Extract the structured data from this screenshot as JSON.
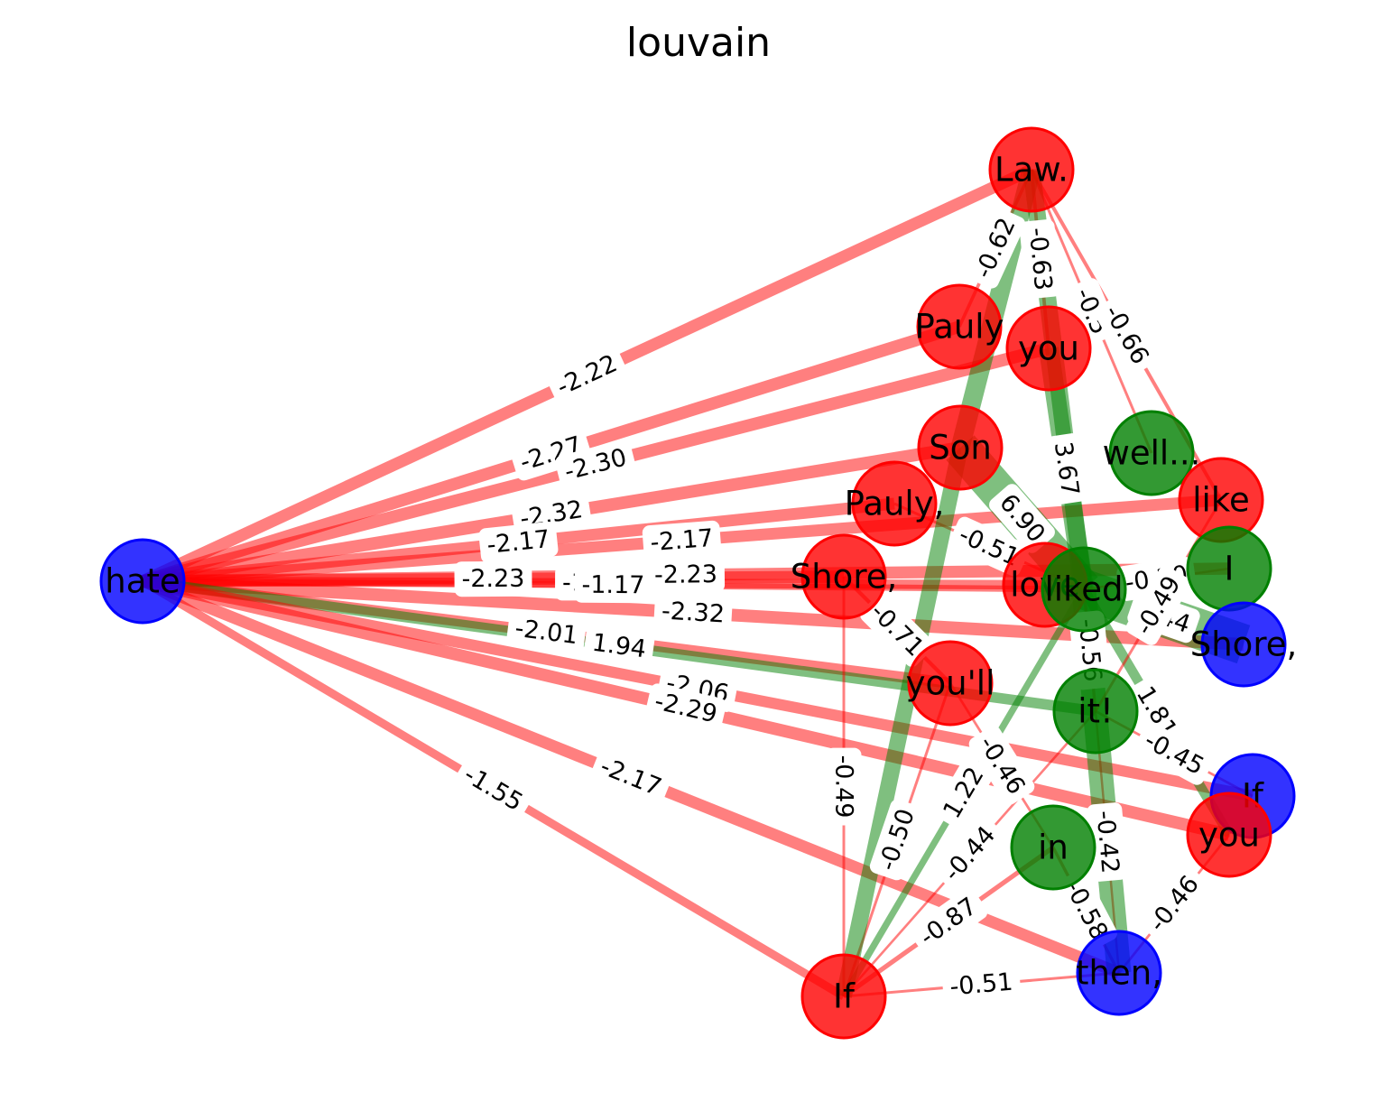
{
  "title": "louvain",
  "colors": {
    "red": "#ff0000",
    "green": "#008000",
    "blue": "#0000ff"
  },
  "nodes": [
    {
      "id": "hate",
      "label": "hate",
      "group": "blue"
    },
    {
      "id": "law",
      "label": "Law.",
      "group": "red"
    },
    {
      "id": "pauly1",
      "label": "Pauly",
      "group": "red"
    },
    {
      "id": "you1",
      "label": "you",
      "group": "red"
    },
    {
      "id": "son",
      "label": "Son",
      "group": "red"
    },
    {
      "id": "well",
      "label": "well...",
      "group": "green"
    },
    {
      "id": "like",
      "label": "like",
      "group": "red"
    },
    {
      "id": "pauly2",
      "label": "Pauly,",
      "group": "red"
    },
    {
      "id": "shore1",
      "label": "Shore,",
      "group": "red"
    },
    {
      "id": "love",
      "label": "love",
      "group": "red"
    },
    {
      "id": "liked",
      "label": "liked",
      "group": "green"
    },
    {
      "id": "I",
      "label": "I",
      "group": "green"
    },
    {
      "id": "shore2",
      "label": "Shore,",
      "group": "blue"
    },
    {
      "id": "youll",
      "label": "you'll",
      "group": "red"
    },
    {
      "id": "it",
      "label": "it!",
      "group": "green"
    },
    {
      "id": "if2",
      "label": "If",
      "group": "blue"
    },
    {
      "id": "you2",
      "label": "you",
      "group": "red"
    },
    {
      "id": "in",
      "label": "in",
      "group": "green"
    },
    {
      "id": "if1",
      "label": "If",
      "group": "red"
    },
    {
      "id": "then",
      "label": "then,",
      "group": "blue"
    }
  ],
  "edges": [
    {
      "source": "hate",
      "target": "law",
      "weight": -2.22,
      "label": "-2.22"
    },
    {
      "source": "hate",
      "target": "pauly1",
      "weight": -2.27,
      "label": "-2.27"
    },
    {
      "source": "hate",
      "target": "you1",
      "weight": -2.3,
      "label": "-2.30"
    },
    {
      "source": "hate",
      "target": "son",
      "weight": -2.32,
      "label": "-2.32"
    },
    {
      "source": "hate",
      "target": "pauly2",
      "weight": -2.17,
      "label": "-2.17"
    },
    {
      "source": "hate",
      "target": "like",
      "weight": -2.17,
      "label": "-2.17"
    },
    {
      "source": "hate",
      "target": "shore1",
      "weight": -2.23,
      "label": "-2.23"
    },
    {
      "source": "hate",
      "target": "love",
      "weight": -1.74,
      "label": "-1.74"
    },
    {
      "source": "hate",
      "target": "liked",
      "weight": -1.17,
      "label": "-1.17"
    },
    {
      "source": "hate",
      "target": "I",
      "weight": -2.23,
      "label": "-2.23"
    },
    {
      "source": "hate",
      "target": "shore2",
      "weight": -2.32,
      "label": "-2.32"
    },
    {
      "source": "hate",
      "target": "youll",
      "weight": -2.01,
      "label": "-2.01"
    },
    {
      "source": "hate",
      "target": "it",
      "weight": 1.94,
      "label": "1.94"
    },
    {
      "source": "hate",
      "target": "if2",
      "weight": -2.06,
      "label": "-2.06"
    },
    {
      "source": "hate",
      "target": "you2",
      "weight": -2.29,
      "label": "-2.29"
    },
    {
      "source": "hate",
      "target": "then",
      "weight": -2.17,
      "label": "-2.17"
    },
    {
      "source": "hate",
      "target": "if1",
      "weight": -1.55,
      "label": "-1.55"
    },
    {
      "source": "law",
      "target": "pauly1",
      "weight": -0.62,
      "label": "-0.62"
    },
    {
      "source": "law",
      "target": "you1",
      "weight": -0.63,
      "label": "-0.63"
    },
    {
      "source": "law",
      "target": "well",
      "weight": -0.5,
      "label": "-0.5"
    },
    {
      "source": "law",
      "target": "like",
      "weight": -0.66,
      "label": "-0.66"
    },
    {
      "source": "law",
      "target": "son",
      "weight": 3.5,
      "label": ""
    },
    {
      "source": "law",
      "target": "liked",
      "weight": 3.2,
      "label": ""
    },
    {
      "source": "you1",
      "target": "liked",
      "weight": 3.67,
      "label": "3.67"
    },
    {
      "source": "son",
      "target": "liked",
      "weight": 6.9,
      "label": "6.90"
    },
    {
      "source": "pauly2",
      "target": "liked",
      "weight": -0.51,
      "label": "-0.51"
    },
    {
      "source": "liked",
      "target": "shore2",
      "weight": 7.44,
      "label": "7.44"
    },
    {
      "source": "liked",
      "target": "I",
      "weight": -0.2,
      "label": "-0.20"
    },
    {
      "source": "liked",
      "target": "you2",
      "weight": 1.81,
      "label": "1.81"
    },
    {
      "source": "liked",
      "target": "it",
      "weight": -0.56,
      "label": "-0.56"
    },
    {
      "source": "it",
      "target": "if2",
      "weight": -0.45,
      "label": "-0.45"
    },
    {
      "source": "it",
      "target": "then",
      "weight": -0.42,
      "label": "-0.42"
    },
    {
      "source": "shore1",
      "target": "youll",
      "weight": -0.71,
      "label": "-0.71"
    },
    {
      "source": "shore1",
      "target": "if1",
      "weight": -0.49,
      "label": "-0.49"
    },
    {
      "source": "youll",
      "target": "if1",
      "weight": -0.5,
      "label": "-0.50"
    },
    {
      "source": "youll",
      "target": "in",
      "weight": -0.46,
      "label": "-0.46"
    },
    {
      "source": "if1",
      "target": "liked",
      "weight": 1.22,
      "label": "1.22"
    },
    {
      "source": "if1",
      "target": "it",
      "weight": -0.44,
      "label": "-0.44"
    },
    {
      "source": "if1",
      "target": "then",
      "weight": -0.51,
      "label": "-0.51"
    },
    {
      "source": "in",
      "target": "then",
      "weight": -0.58,
      "label": "-0.58"
    },
    {
      "source": "then",
      "target": "you2",
      "weight": -0.46,
      "label": "-0.46"
    },
    {
      "source": "then",
      "target": "liked",
      "weight": 4.5,
      "label": ""
    },
    {
      "source": "if1",
      "target": "son",
      "weight": 3.0,
      "label": ""
    },
    {
      "source": "it",
      "target": "like",
      "weight": -0.49,
      "label": "-0.49"
    },
    {
      "source": "in",
      "target": "if1",
      "weight": -0.87,
      "label": "-0.87"
    }
  ]
}
